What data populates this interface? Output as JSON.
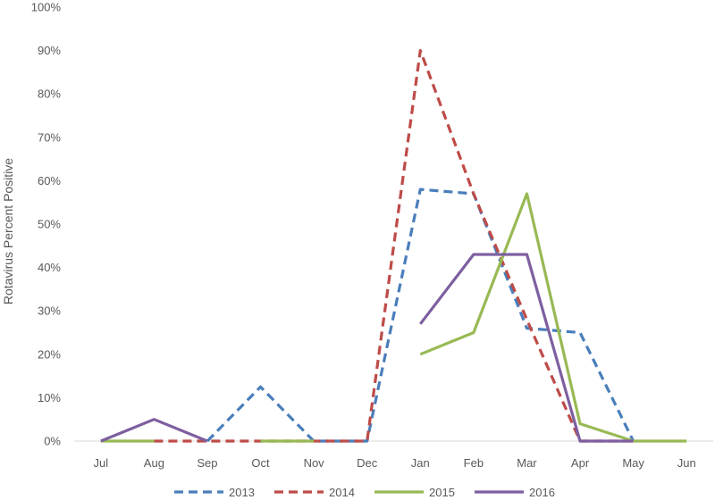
{
  "chart_data": {
    "type": "line",
    "title": "",
    "xlabel": "",
    "ylabel": "Rotavirus Percent Positive",
    "categories": [
      "Jul",
      "Aug",
      "Sep",
      "Oct",
      "Nov",
      "Dec",
      "Jan",
      "Feb",
      "Mar",
      "Apr",
      "May",
      "Jun"
    ],
    "ylim": [
      0,
      100
    ],
    "yticks": [
      "0%",
      "10%",
      "20%",
      "30%",
      "40%",
      "50%",
      "60%",
      "70%",
      "80%",
      "90%",
      "100%"
    ],
    "grid": false,
    "legend_position": "bottom",
    "series": [
      {
        "name": "2013",
        "color": "#4a7ebb",
        "dash": "dashed",
        "values": [
          null,
          null,
          0,
          12.5,
          0,
          0,
          58,
          57,
          26,
          25,
          0,
          null
        ]
      },
      {
        "name": "2014",
        "color": "#be4b48",
        "dash": "dashed",
        "values": [
          null,
          0,
          0,
          0,
          0,
          0,
          90,
          57,
          28,
          0,
          0,
          null
        ]
      },
      {
        "name": "2015",
        "color": "#98b954",
        "dash": "solid",
        "values": [
          0,
          0,
          null,
          0,
          0,
          null,
          20,
          25,
          57,
          4,
          0,
          0
        ]
      },
      {
        "name": "2016",
        "color": "#7d5fa0",
        "dash": "solid",
        "values": [
          0,
          5,
          0,
          null,
          null,
          null,
          27,
          43,
          43,
          0,
          0,
          null
        ]
      }
    ]
  }
}
